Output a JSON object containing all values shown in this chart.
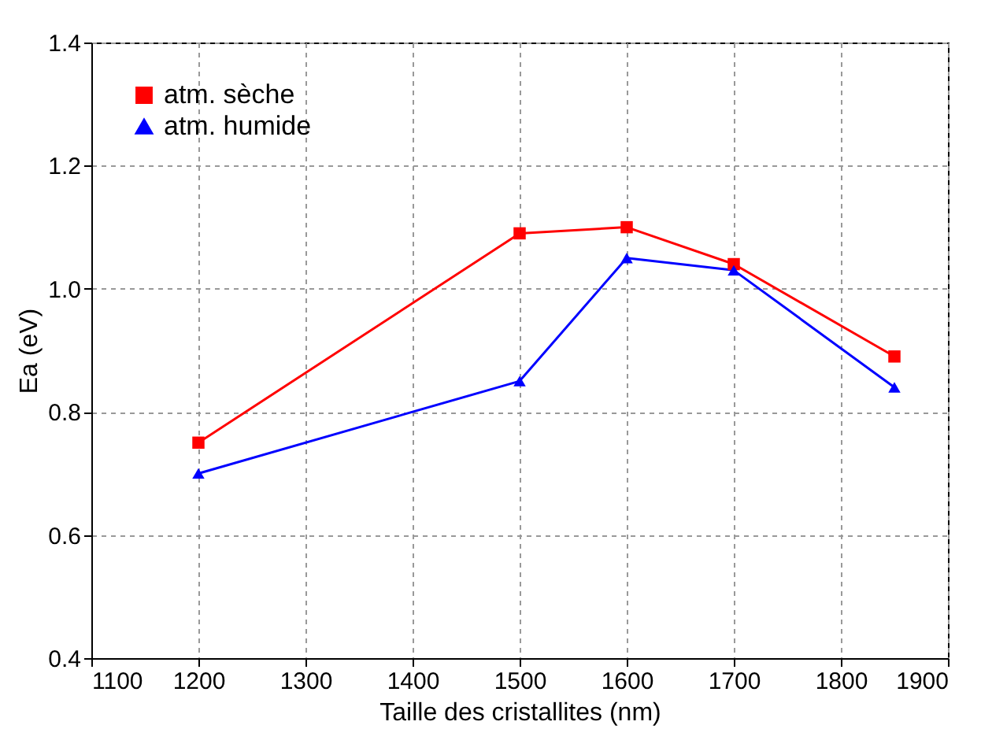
{
  "chart_data": {
    "type": "line",
    "xlabel": "Taille des cristallites (nm)",
    "ylabel": "Ea (eV)",
    "x": [
      1200,
      1500,
      1600,
      1700,
      1850
    ],
    "series": [
      {
        "name": "atm. sèche",
        "color": "#ff0000",
        "marker": "square",
        "values": [
          0.75,
          1.09,
          1.1,
          1.04,
          0.89
        ]
      },
      {
        "name": "atm. humide",
        "color": "#0000ff",
        "marker": "triangle",
        "values": [
          0.7,
          0.85,
          1.05,
          1.03,
          0.84
        ]
      }
    ],
    "xlim": [
      1100,
      1900
    ],
    "xticks": [
      1100,
      1200,
      1300,
      1400,
      1500,
      1600,
      1700,
      1800,
      1900
    ],
    "ylim": [
      0.4,
      1.4
    ],
    "yticks": [
      0.4,
      0.6,
      0.8,
      {
        "value": 1.0,
        "label": "1.0"
      },
      1.2,
      1.4
    ],
    "grid": true,
    "legend": "top left",
    "line_style": "solid"
  }
}
